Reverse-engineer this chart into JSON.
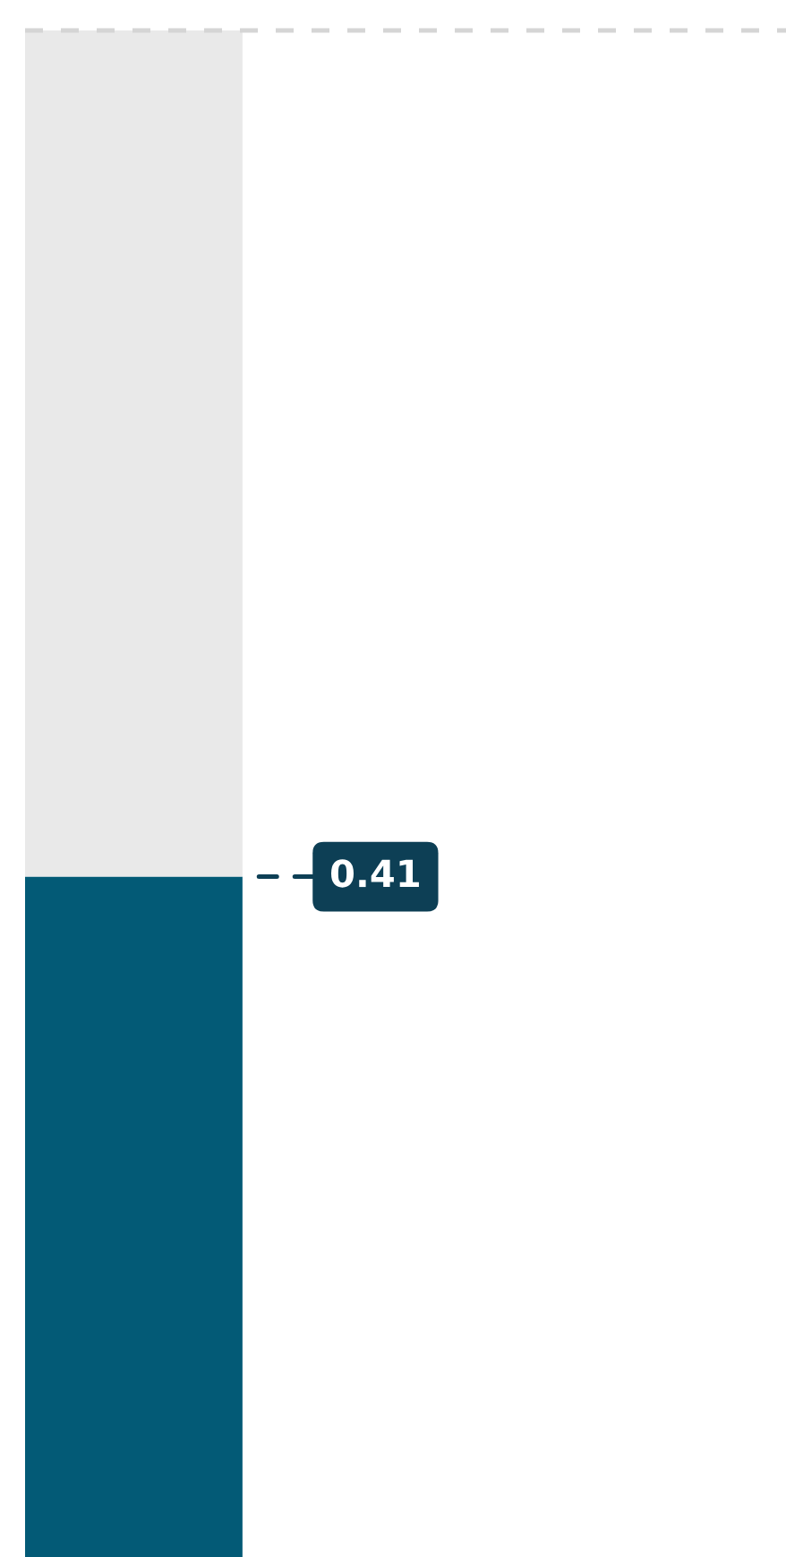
{
  "chart_data": {
    "type": "bar",
    "categories": [
      null
    ],
    "stacked": true,
    "ylim": [
      0,
      0.92
    ],
    "tick_labels": false,
    "grid": false,
    "legend": false,
    "series": [
      {
        "color": "#035a76",
        "values": [
          0.41
        ],
        "value_labels": [
          "0.41"
        ]
      },
      {
        "color": "#e9e9e9",
        "values": [
          0.51
        ]
      }
    ],
    "ref_lines": [
      {
        "axis": "y",
        "value": 0.92,
        "color": "#d5d5d5",
        "line_style": "dashed"
      }
    ]
  }
}
